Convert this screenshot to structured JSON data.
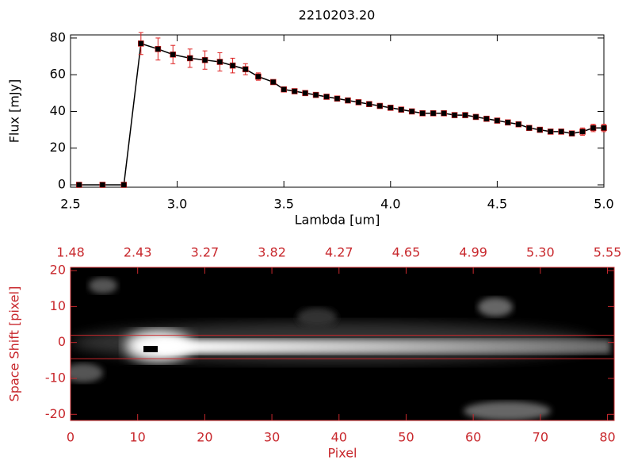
{
  "chart_data": [
    {
      "type": "line",
      "title": "2210203.20",
      "xlabel": "Lambda [um]",
      "ylabel": "Flux [mJy]",
      "x": [
        2.54,
        2.65,
        2.75,
        2.83,
        2.91,
        2.98,
        3.06,
        3.13,
        3.2,
        3.26,
        3.32,
        3.38,
        3.45,
        3.5,
        3.55,
        3.6,
        3.65,
        3.7,
        3.75,
        3.8,
        3.85,
        3.9,
        3.95,
        4.0,
        4.05,
        4.1,
        4.15,
        4.2,
        4.25,
        4.3,
        4.35,
        4.4,
        4.45,
        4.5,
        4.55,
        4.6,
        4.65,
        4.7,
        4.75,
        4.8,
        4.85,
        4.9,
        4.95,
        5.0
      ],
      "values": [
        0,
        0,
        0,
        77,
        74,
        71,
        69,
        68,
        67,
        65,
        63,
        59,
        56,
        52,
        51,
        50,
        49,
        48,
        47,
        46,
        45,
        44,
        43,
        42,
        41,
        40,
        39,
        39,
        39,
        38,
        38,
        37,
        36,
        35,
        34,
        33,
        31,
        30,
        29,
        29,
        28,
        29,
        31,
        31
      ],
      "errors": [
        0,
        0,
        0,
        6,
        6,
        5,
        5,
        5,
        5,
        4,
        3,
        2,
        1,
        1,
        1,
        1,
        1,
        1,
        1,
        1,
        1,
        1,
        1,
        1,
        1,
        1,
        1,
        1,
        1,
        1,
        1,
        1,
        1,
        1,
        1,
        1,
        1,
        1,
        1,
        1,
        1,
        2,
        2,
        2
      ],
      "color": "#000000",
      "error_color": "#dd2020",
      "xlim": [
        2.5,
        5.0
      ],
      "ylim": [
        -1.3,
        81.7
      ],
      "xticks": [
        2.5,
        {
          "value": 3,
          "label": "3.0"
        },
        3.5,
        {
          "value": 4,
          "label": "4.0"
        },
        4.5,
        {
          "value": 5,
          "label": "5.0"
        }
      ],
      "yticks": [
        0,
        20,
        40,
        60,
        80
      ]
    },
    {
      "type": "image",
      "xlabel": "Pixel",
      "ylabel": "Space Shift [pixel]",
      "color": "#c8282d",
      "xlim": [
        0,
        81
      ],
      "ylim": [
        -21.7,
        20.9
      ],
      "xticks": [
        0,
        10,
        20,
        30,
        40,
        50,
        60,
        70,
        80
      ],
      "yticks": [
        -20,
        -10,
        0,
        10,
        20
      ],
      "x2ticks": [
        {
          "value": 0,
          "label": "1.48"
        },
        {
          "value": 10,
          "label": "2.43"
        },
        {
          "value": 20,
          "label": "3.27"
        },
        {
          "value": 30,
          "label": "3.82"
        },
        {
          "value": 40,
          "label": "4.27"
        },
        {
          "value": 50,
          "label": "4.65"
        },
        {
          "value": 60,
          "label": "4.99"
        },
        {
          "value": 70,
          "label": "5.30"
        },
        {
          "value": 80,
          "label": "5.55"
        }
      ],
      "hlines": [
        2,
        -4.5
      ]
    }
  ]
}
